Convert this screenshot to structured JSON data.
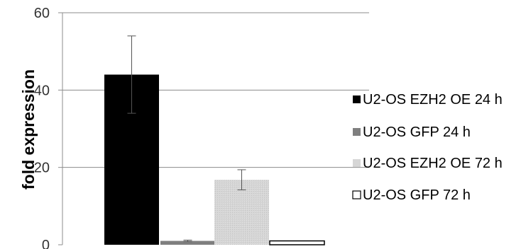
{
  "chart_data": {
    "type": "bar",
    "ylabel": "fold expression",
    "ylim": [
      0,
      60
    ],
    "yticks": [
      "0",
      "20",
      "40",
      "60"
    ],
    "grid": true,
    "legend_position": "right",
    "series": [
      {
        "name": "U2-OS EZH2 OE 24 h",
        "value": 44,
        "error": 10,
        "color": "#000000",
        "hatch": false
      },
      {
        "name": "U2-OS GFP 24 h",
        "value": 1,
        "error": 0.2,
        "color": "#7f7f7f",
        "hatch": false
      },
      {
        "name": "U2-OS EZH2 OE 72 h",
        "value": 16.8,
        "error": 2.6,
        "color": "#d4d4d4",
        "hatch": true
      },
      {
        "name": "U2-OS GFP 72 h",
        "value": 1,
        "error": 0,
        "color": "#ffffff",
        "hatch": false
      }
    ]
  }
}
